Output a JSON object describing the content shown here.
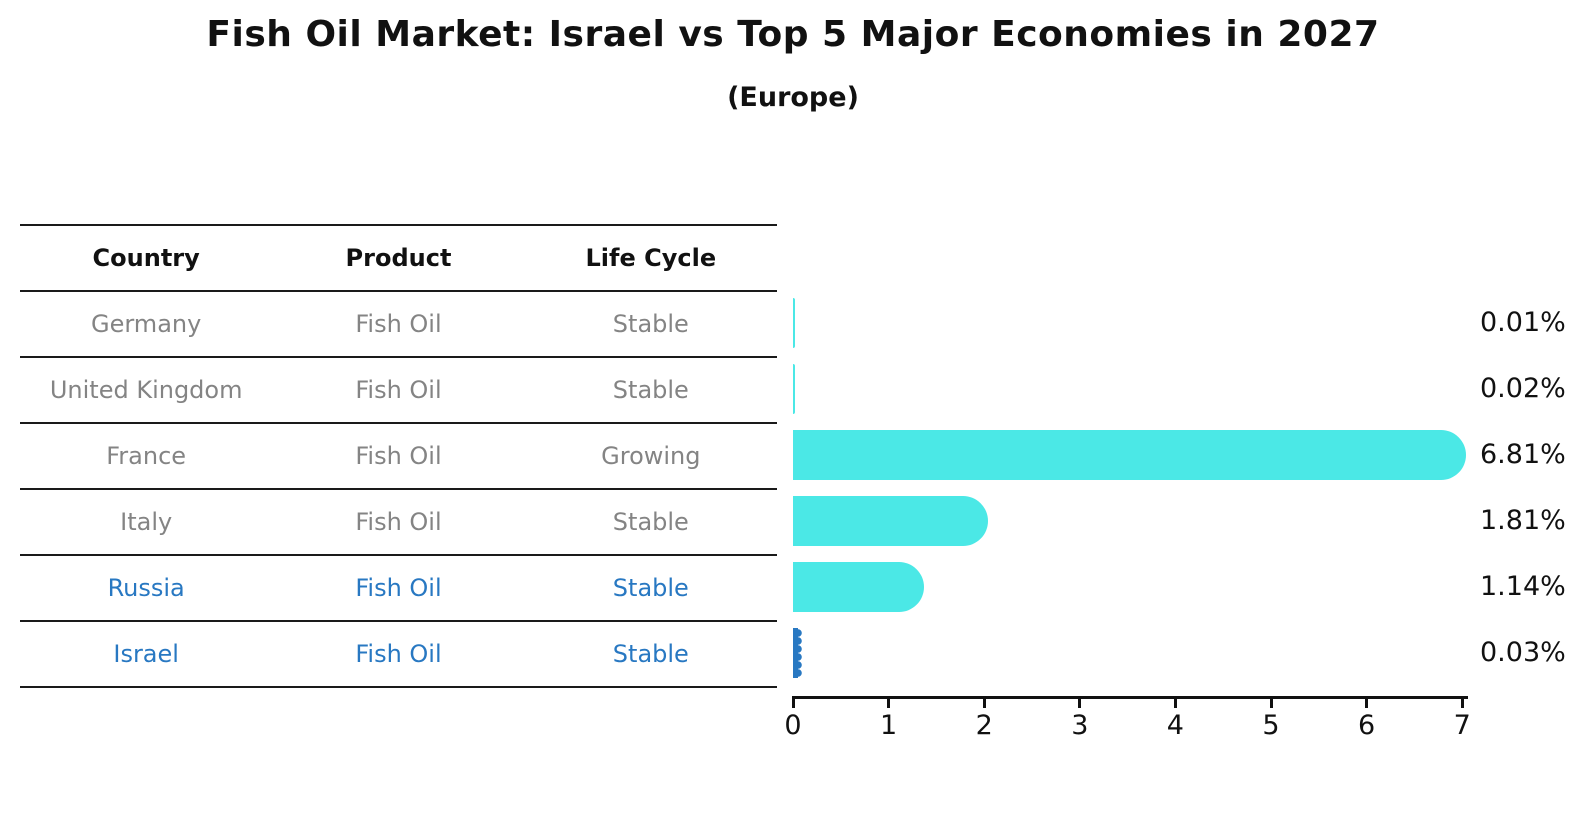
{
  "title": "Fish Oil Market: Israel vs Top 5 Major Economies in 2027",
  "subtitle": "(Europe)",
  "table": {
    "headers": [
      "Country",
      "Product",
      "Life Cycle"
    ],
    "rows": [
      {
        "country": "Germany",
        "product": "Fish Oil",
        "life_cycle": "Stable",
        "highlight": false
      },
      {
        "country": "United Kingdom",
        "product": "Fish Oil",
        "life_cycle": "Stable",
        "highlight": false
      },
      {
        "country": "France",
        "product": "Fish Oil",
        "life_cycle": "Growing",
        "highlight": false
      },
      {
        "country": "Italy",
        "product": "Fish Oil",
        "life_cycle": "Stable",
        "highlight": false
      },
      {
        "country": "Russia",
        "product": "Fish Oil",
        "life_cycle": "Stable",
        "highlight": true
      }
    ],
    "highlight_row": {
      "country": "Israel",
      "product": "Fish Oil",
      "life_cycle": "Stable"
    }
  },
  "chart_data": {
    "type": "bar",
    "orientation": "horizontal",
    "title": "Fish Oil Market: Israel vs Top 5 Major Economies in 2027",
    "subtitle": "(Europe)",
    "categories": [
      "Germany",
      "United Kingdom",
      "France",
      "Italy",
      "Russia",
      "Israel"
    ],
    "values": [
      0.01,
      0.02,
      6.81,
      1.81,
      1.14,
      0.03
    ],
    "value_labels": [
      "0.01%",
      "0.02%",
      "6.81%",
      "1.81%",
      "1.14%",
      "0.03%"
    ],
    "life_cycle": [
      "Stable",
      "Stable",
      "Growing",
      "Stable",
      "Stable",
      "Stable"
    ],
    "product": "Fish Oil",
    "xlim": [
      0,
      7
    ],
    "x_ticks": [
      0,
      1,
      2,
      3,
      4,
      5,
      6,
      7
    ],
    "grid": false,
    "legend": null,
    "highlight_index": 5
  },
  "colors": {
    "bar": "#4BE8E6",
    "highlight": "#2878C2",
    "table_text": "#848484",
    "header_text": "#111111",
    "line": "#1a1a1a",
    "label_text": "#111111"
  }
}
